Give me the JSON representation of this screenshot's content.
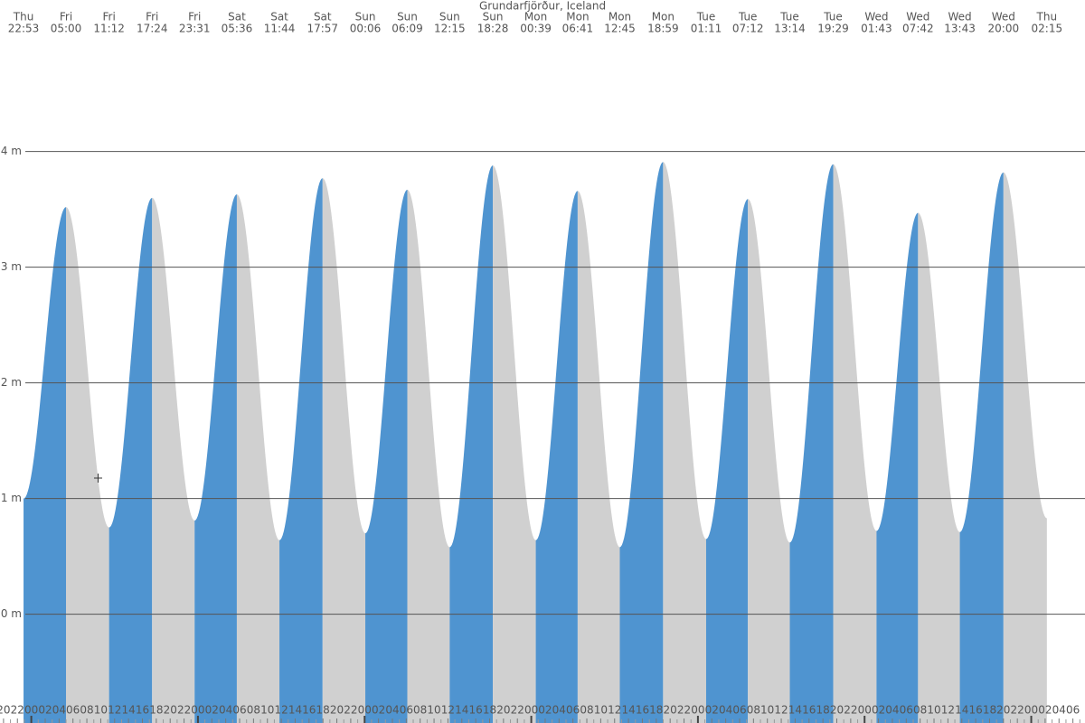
{
  "chart_data": {
    "type": "tide",
    "title": "Grundarfjörður, Iceland",
    "days": [
      "Thu",
      "Fri",
      "Fri",
      "Fri",
      "Fri",
      "Sat",
      "Sat",
      "Sat",
      "Sun",
      "Sun",
      "Sun",
      "Sun",
      "Mon",
      "Mon",
      "Mon",
      "Mon",
      "Tue",
      "Tue",
      "Tue",
      "Tue",
      "Wed",
      "Wed",
      "Wed",
      "Wed",
      "Thu"
    ],
    "times": [
      "22:53",
      "05:00",
      "11:12",
      "17:24",
      "23:31",
      "05:36",
      "11:44",
      "17:57",
      "00:06",
      "06:09",
      "12:15",
      "18:28",
      "00:39",
      "06:41",
      "12:45",
      "18:59",
      "01:11",
      "07:12",
      "13:14",
      "19:29",
      "01:43",
      "07:42",
      "13:43",
      "20:00",
      "02:15"
    ],
    "values": [
      1.0,
      3.52,
      0.75,
      3.6,
      0.81,
      3.63,
      0.64,
      3.77,
      0.7,
      3.67,
      0.58,
      3.88,
      0.64,
      3.66,
      0.58,
      3.91,
      0.65,
      3.59,
      0.62,
      3.89,
      0.72,
      3.47,
      0.71,
      3.82,
      0.83
    ],
    "rise_color": "#4f94d0",
    "fall_color": "#d0d0d0",
    "ylim": [
      -0.94,
      5.31
    ],
    "yticks": [
      {
        "value": 0,
        "label": "0 m"
      },
      {
        "value": 1,
        "label": "1 m"
      },
      {
        "value": 2,
        "label": "2 m"
      },
      {
        "value": 3,
        "label": "3 m"
      },
      {
        "value": 4,
        "label": "4 m"
      }
    ],
    "grid": true,
    "hour_labels": [
      "20",
      "22",
      "00",
      "02",
      "04",
      "06",
      "08",
      "10",
      "12",
      "14",
      "16",
      "18",
      "20",
      "22",
      "00",
      "02",
      "04",
      "06",
      "08",
      "10",
      "12",
      "14",
      "16",
      "18",
      "20",
      "22",
      "00",
      "02",
      "04",
      "06",
      "08",
      "10",
      "12",
      "14",
      "16",
      "18",
      "20",
      "22",
      "00",
      "02",
      "04",
      "06",
      "08",
      "10",
      "12",
      "14",
      "16",
      "18",
      "20",
      "22",
      "00",
      "02",
      "04",
      "06",
      "08",
      "10",
      "12",
      "14",
      "16",
      "18",
      "20",
      "22",
      "00",
      "02",
      "04",
      "06",
      "08",
      "10",
      "12",
      "14",
      "16",
      "18",
      "20",
      "22",
      "00",
      "02",
      "04",
      "06"
    ]
  }
}
